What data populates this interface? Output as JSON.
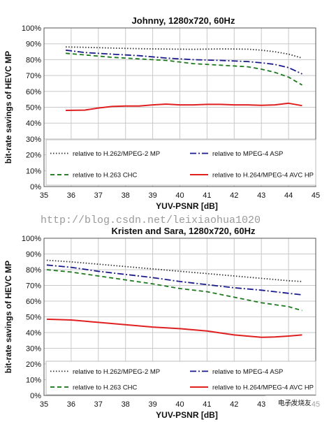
{
  "watermark": "http://blog.csdn.net/leixiaohua1020",
  "corner_logo": "电子发烧友",
  "chart_data": [
    {
      "type": "line",
      "title": "Johnny, 1280x720, 60Hz",
      "xlabel": "YUV-PSNR [dB]",
      "ylabel": "bit-rate savings of HEVC MP",
      "xlim": [
        35,
        45
      ],
      "ylim": [
        0,
        100
      ],
      "xticks": [
        "35",
        "36",
        "37",
        "38",
        "39",
        "40",
        "41",
        "42",
        "43",
        "44",
        "45"
      ],
      "yticks": [
        "0%",
        "10%",
        "20%",
        "30%",
        "40%",
        "50%",
        "60%",
        "70%",
        "80%",
        "90%",
        "100%"
      ],
      "grid": true,
      "legend_position": "bottom",
      "series": [
        {
          "name": "relative to H.262/MPEG-2 MP",
          "color": "#333333",
          "style": "dotted",
          "x": [
            35.8,
            36.5,
            37.5,
            38.5,
            39.5,
            40.5,
            41.5,
            42.5,
            43.0,
            43.5,
            44.0,
            44.5
          ],
          "y": [
            88,
            87.8,
            87.3,
            86.9,
            86.7,
            86.5,
            86.8,
            86.6,
            86.0,
            85.0,
            83.5,
            81.0
          ]
        },
        {
          "name": "relative to MPEG-4 ASP",
          "color": "#1a1a8c",
          "style": "dashdot",
          "x": [
            35.8,
            36.5,
            37.5,
            38.5,
            39.5,
            40.5,
            41.5,
            42.5,
            43.0,
            43.5,
            44.0,
            44.5
          ],
          "y": [
            86,
            84.5,
            83.5,
            82.5,
            81.0,
            80.0,
            79.5,
            78.8,
            78.0,
            77.0,
            75.0,
            71.0
          ]
        },
        {
          "name": "relative to H.263 CHC",
          "color": "#1d7a1d",
          "style": "dashed",
          "x": [
            35.8,
            36.5,
            37.5,
            38.5,
            39.5,
            40.5,
            41.5,
            42.5,
            43.0,
            43.5,
            44.0,
            44.5
          ],
          "y": [
            84,
            83,
            81.5,
            80.5,
            79.5,
            77.5,
            76.5,
            75.5,
            74.0,
            72.0,
            69.0,
            64.0
          ]
        },
        {
          "name": "relative to H.264/MPEG-4 AVC HP",
          "color": "#e02020",
          "style": "solid",
          "x": [
            35.8,
            36.5,
            37.0,
            37.5,
            38.0,
            38.5,
            39.0,
            39.5,
            40.0,
            40.5,
            41.0,
            41.5,
            42.0,
            42.5,
            43.0,
            43.5,
            44.0,
            44.5
          ],
          "y": [
            48,
            48.2,
            49.5,
            50.5,
            50.8,
            50.8,
            51.5,
            52.0,
            51.5,
            51.5,
            51.8,
            51.8,
            51.5,
            51.5,
            51.2,
            51.5,
            52.5,
            51.0
          ]
        }
      ]
    },
    {
      "type": "line",
      "title": "Kristen and Sara, 1280x720, 60Hz",
      "xlabel": "YUV-PSNR [dB]",
      "ylabel": "bit-rate savings of HEVC MP",
      "xlim": [
        35,
        45
      ],
      "ylim": [
        0,
        100
      ],
      "xticks": [
        "35",
        "36",
        "37",
        "38",
        "39",
        "40",
        "41",
        "42",
        "43",
        "44",
        "45"
      ],
      "yticks": [
        "0%",
        "10%",
        "20%",
        "30%",
        "40%",
        "50%",
        "60%",
        "70%",
        "80%",
        "90%",
        "100%"
      ],
      "grid": true,
      "legend_position": "bottom",
      "series": [
        {
          "name": "relative to H.262/MPEG-2 MP",
          "color": "#333333",
          "style": "dotted",
          "x": [
            35.1,
            36.0,
            37.0,
            38.0,
            39.0,
            40.0,
            41.0,
            42.0,
            43.0,
            44.0,
            44.5
          ],
          "y": [
            86,
            85,
            83.5,
            82,
            80.5,
            79,
            77.5,
            76,
            74.5,
            73,
            72.5
          ]
        },
        {
          "name": "relative to MPEG-4 ASP",
          "color": "#1a1a8c",
          "style": "dashdot",
          "x": [
            35.1,
            36.0,
            37.0,
            38.0,
            39.0,
            40.0,
            41.0,
            42.0,
            43.0,
            44.0,
            44.5
          ],
          "y": [
            83,
            81.5,
            79,
            77,
            75,
            72.5,
            70.5,
            68.5,
            67,
            65,
            64
          ]
        },
        {
          "name": "relative to H.263 CHC",
          "color": "#1d7a1d",
          "style": "dashed",
          "x": [
            35.1,
            36.0,
            37.0,
            38.0,
            39.0,
            40.0,
            41.0,
            42.0,
            43.0,
            44.0,
            44.5
          ],
          "y": [
            80,
            78.5,
            76,
            73.5,
            71,
            68,
            66,
            62.5,
            59,
            56.5,
            54
          ]
        },
        {
          "name": "relative to H.264/MPEG-4 AVC HP",
          "color": "#e02020",
          "style": "solid",
          "x": [
            35.1,
            36.0,
            37.0,
            38.0,
            39.0,
            40.0,
            41.0,
            42.0,
            43.0,
            43.5,
            44.0,
            44.5
          ],
          "y": [
            48.5,
            48,
            46.5,
            45,
            43.5,
            42.5,
            41,
            38.5,
            37,
            37.2,
            37.8,
            38.5
          ]
        }
      ]
    }
  ]
}
